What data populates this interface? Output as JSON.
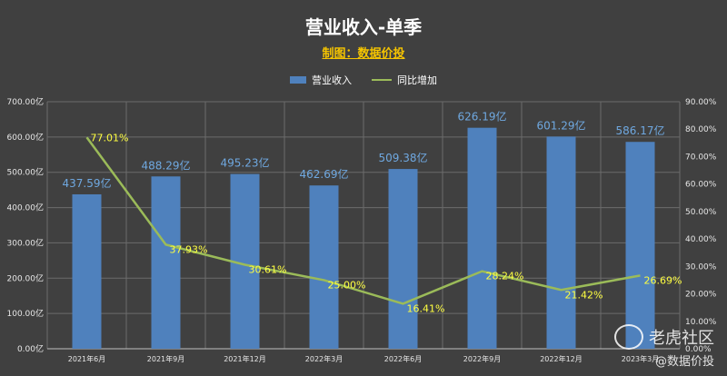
{
  "colors": {
    "bar": "#4f81bd",
    "line": "#9bbb59",
    "bar_label": "#6fa8e0",
    "line_label": "#ffff40",
    "background": "#404040",
    "grid": "#6b6b6b"
  },
  "watermark": {
    "brand": "老虎社区",
    "sub": "@数据价投"
  },
  "chart_data": {
    "type": "bar",
    "title": "营业收入-单季",
    "subtitle": "制图：数据价投",
    "categories": [
      "2021年6月",
      "2021年9月",
      "2021年12月",
      "2022年3月",
      "2022年6月",
      "2022年9月",
      "2022年12月",
      "2023年3月"
    ],
    "series": [
      {
        "name": "营业收入",
        "kind": "bar",
        "axis": "left",
        "values": [
          437.59,
          488.29,
          495.23,
          462.69,
          509.38,
          626.19,
          601.29,
          586.17
        ],
        "labels": [
          "437.59亿",
          "488.29亿",
          "495.23亿",
          "462.69亿",
          "509.38亿",
          "626.19亿",
          "601.29亿",
          "586.17亿"
        ]
      },
      {
        "name": "同比增加",
        "kind": "line",
        "axis": "right",
        "values": [
          77.01,
          37.93,
          30.61,
          25.0,
          16.41,
          28.24,
          21.42,
          26.69
        ],
        "labels": [
          "77.01%",
          "37.93%",
          "30.61%",
          "25.00%",
          "16.41%",
          "28.24%",
          "21.42%",
          "26.69%"
        ]
      }
    ],
    "y_left": {
      "ylim": [
        0,
        700
      ],
      "ticks": [
        "0.00亿",
        "100.00亿",
        "200.00亿",
        "300.00亿",
        "400.00亿",
        "500.00亿",
        "600.00亿",
        "700.00亿"
      ]
    },
    "y_right": {
      "ylim": [
        0,
        90
      ],
      "ticks": [
        "0.00%",
        "10.00%",
        "20.00%",
        "30.00%",
        "40.00%",
        "50.00%",
        "60.00%",
        "70.00%",
        "80.00%",
        "90.00%"
      ]
    },
    "grid": true,
    "legend_position": "top"
  }
}
